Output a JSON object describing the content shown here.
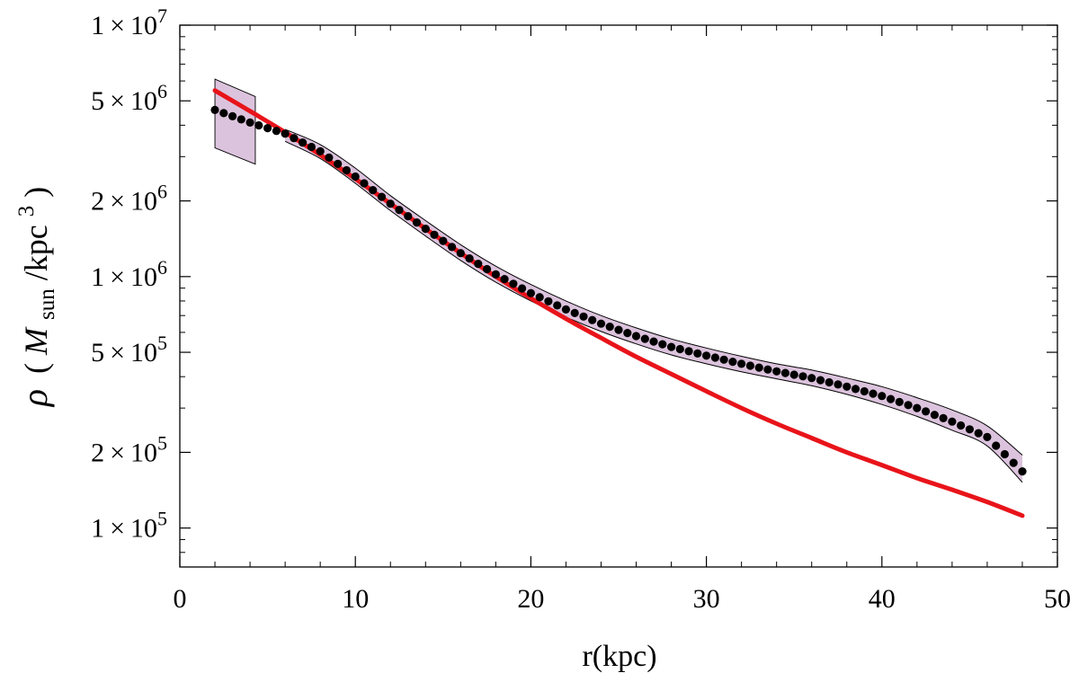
{
  "chart_data": {
    "type": "scatter",
    "xlabel": "r(kpc)",
    "ylabel": {
      "symbol": "ρ",
      "open": "(",
      "mass": "M",
      "mass_sub": "sun",
      "slash": "/kpc",
      "power": "3",
      "close": ")"
    },
    "xlim": [
      0,
      50
    ],
    "ylim": [
      70000,
      10000000
    ],
    "yscale": "log",
    "x_ticks": [
      {
        "value": 0,
        "label": "0"
      },
      {
        "value": 10,
        "label": "10"
      },
      {
        "value": 20,
        "label": "20"
      },
      {
        "value": 30,
        "label": "30"
      },
      {
        "value": 40,
        "label": "40"
      },
      {
        "value": 50,
        "label": "50"
      }
    ],
    "y_ticks": [
      {
        "value": 100000,
        "mant": "1",
        "times": "×",
        "base": "10",
        "exp": "5"
      },
      {
        "value": 200000,
        "mant": "2",
        "times": "×",
        "base": "10",
        "exp": "5"
      },
      {
        "value": 500000,
        "mant": "5",
        "times": "×",
        "base": "10",
        "exp": "5"
      },
      {
        "value": 1000000,
        "mant": "1",
        "times": "×",
        "base": "10",
        "exp": "6"
      },
      {
        "value": 2000000,
        "mant": "2",
        "times": "×",
        "base": "10",
        "exp": "6"
      },
      {
        "value": 5000000,
        "mant": "5",
        "times": "×",
        "base": "10",
        "exp": "6"
      },
      {
        "value": 10000000,
        "mant": "1",
        "times": "×",
        "base": "10",
        "exp": "7"
      }
    ],
    "colors": {
      "points": "#000000",
      "fit": "#e8141a",
      "band_fill": "#dcc3dd",
      "band_edge": "#000000"
    },
    "knots": {
      "observed": [
        [
          2.0,
          4600000.0
        ],
        [
          4.0,
          4100000.0
        ],
        [
          6.0,
          3700000.0
        ],
        [
          8.0,
          3150000.0
        ],
        [
          10.0,
          2500000.0
        ],
        [
          12.0,
          1950000.0
        ],
        [
          14.0,
          1550000.0
        ],
        [
          16.0,
          1240000.0
        ],
        [
          18.0,
          1020000.0
        ],
        [
          20.0,
          860000.0
        ],
        [
          22.0,
          740000.0
        ],
        [
          24.0,
          650000.0
        ],
        [
          26.0,
          580000.0
        ],
        [
          28.0,
          525000.0
        ],
        [
          30.0,
          485000.0
        ],
        [
          32.0,
          450000.0
        ],
        [
          34.0,
          420000.0
        ],
        [
          36.0,
          395000.0
        ],
        [
          38.0,
          365000.0
        ],
        [
          40.0,
          335000.0
        ],
        [
          42.0,
          300000.0
        ],
        [
          44.0,
          265000.0
        ],
        [
          46.0,
          230000.0
        ],
        [
          48.0,
          168000.0
        ]
      ],
      "band_upper": [
        [
          6.0,
          3850000.0
        ],
        [
          8.0,
          3350000.0
        ],
        [
          10.0,
          2700000.0
        ],
        [
          12.0,
          2100000.0
        ],
        [
          14.0,
          1670000.0
        ],
        [
          16.0,
          1340000.0
        ],
        [
          18.0,
          1100000.0
        ],
        [
          20.0,
          930000.0
        ],
        [
          22.0,
          800000.0
        ],
        [
          24.0,
          700000.0
        ],
        [
          26.0,
          625000.0
        ],
        [
          28.0,
          565000.0
        ],
        [
          30.0,
          520000.0
        ],
        [
          32.0,
          482000.0
        ],
        [
          34.0,
          450000.0
        ],
        [
          36.0,
          425000.0
        ],
        [
          38.0,
          395000.0
        ],
        [
          40.0,
          365000.0
        ],
        [
          42.0,
          330000.0
        ],
        [
          44.0,
          295000.0
        ],
        [
          46.0,
          255000.0
        ],
        [
          48.0,
          195000.0
        ]
      ],
      "band_lower": [
        [
          6.0,
          3450000.0
        ],
        [
          8.0,
          2950000.0
        ],
        [
          10.0,
          2350000.0
        ],
        [
          12.0,
          1830000.0
        ],
        [
          14.0,
          1450000.0
        ],
        [
          16.0,
          1160000.0
        ],
        [
          18.0,
          950000.0
        ],
        [
          20.0,
          800000.0
        ],
        [
          22.0,
          690000.0
        ],
        [
          24.0,
          605000.0
        ],
        [
          26.0,
          540000.0
        ],
        [
          28.0,
          488000.0
        ],
        [
          30.0,
          450000.0
        ],
        [
          32.0,
          418000.0
        ],
        [
          34.0,
          392000.0
        ],
        [
          36.0,
          368000.0
        ],
        [
          38.0,
          340000.0
        ],
        [
          40.0,
          310000.0
        ],
        [
          42.0,
          278000.0
        ],
        [
          44.0,
          245000.0
        ],
        [
          46.0,
          212000.0
        ],
        [
          48.0,
          152000.0
        ]
      ],
      "inner_band": [
        [
          2.0,
          6100000.0,
          3250000.0
        ],
        [
          4.3,
          5200000.0,
          2800000.0
        ]
      ],
      "fit": [
        [
          2.0,
          5500000.0
        ],
        [
          4.0,
          4550000.0
        ],
        [
          6.0,
          3750000.0
        ],
        [
          8.0,
          3050000.0
        ],
        [
          10.0,
          2450000.0
        ],
        [
          12.0,
          1950000.0
        ],
        [
          14.0,
          1550000.0
        ],
        [
          16.0,
          1240000.0
        ],
        [
          18.0,
          1000000.0
        ],
        [
          20.0,
          820000.0
        ],
        [
          22.0,
          680000.0
        ],
        [
          24.0,
          570000.0
        ],
        [
          26.0,
          480000.0
        ],
        [
          28.0,
          410000.0
        ],
        [
          30.0,
          350000.0
        ],
        [
          32.0,
          300000.0
        ],
        [
          34.0,
          260000.0
        ],
        [
          36.0,
          228000.0
        ],
        [
          38.0,
          200000.0
        ],
        [
          40.0,
          178000.0
        ],
        [
          42.0,
          158000.0
        ],
        [
          44.0,
          142000.0
        ],
        [
          46.0,
          127000.0
        ],
        [
          48.0,
          112000.0
        ]
      ]
    }
  }
}
